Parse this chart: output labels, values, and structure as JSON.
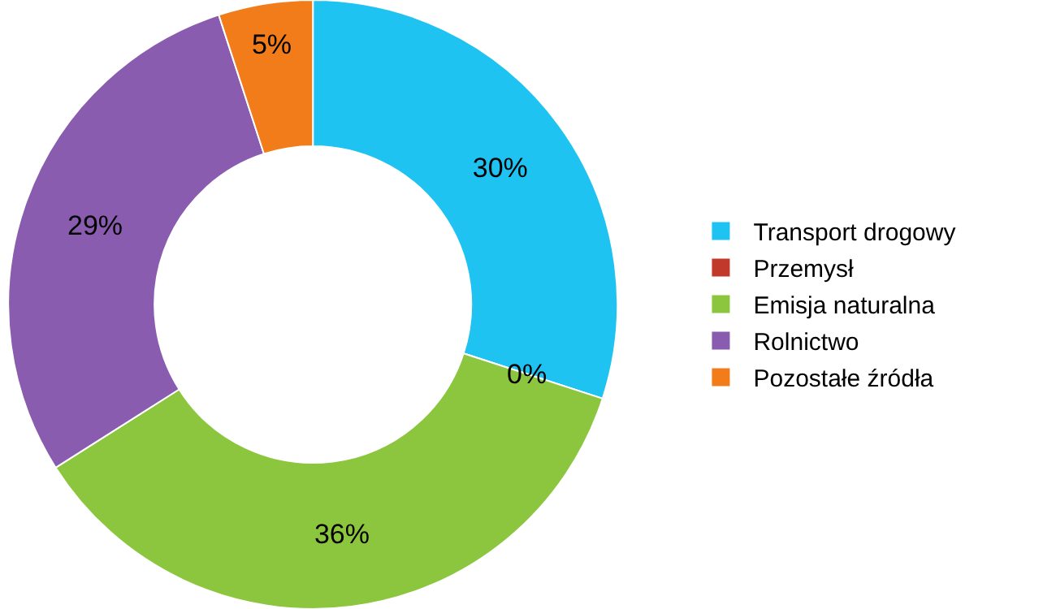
{
  "chart_data": {
    "type": "donut",
    "categories": [
      "Transport drogowy",
      "Przemysł",
      "Emisja naturalna",
      "Rolnictwo",
      "Pozostałe źródła"
    ],
    "values": [
      30,
      0,
      36,
      29,
      5
    ],
    "value_labels": [
      "30%",
      "0%",
      "36%",
      "29%",
      "5%"
    ],
    "colors": [
      "#1ec3f2",
      "#c0392b",
      "#8cc63e",
      "#8a5cb0",
      "#f27b1a"
    ],
    "legend": "right"
  }
}
